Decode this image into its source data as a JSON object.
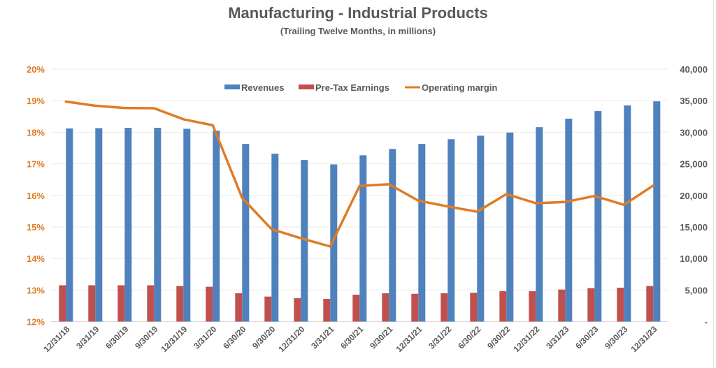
{
  "chart_data": {
    "type": "bar",
    "title": "Manufacturing - Industrial Products",
    "subtitle": "(Trailing Twelve Months, in millions)",
    "xlabel": "",
    "ylabel_left": "",
    "ylabel_right": "",
    "legend_position": "top-center",
    "grid": true,
    "categories": [
      "12/31/18",
      "3/31/19",
      "6/30/19",
      "9/30/19",
      "12/31/19",
      "3/31/20",
      "6/30/20",
      "9/30/20",
      "12/31/20",
      "3/31/21",
      "6/30/21",
      "9/30/21",
      "12/31/21",
      "3/31/22",
      "6/30/22",
      "9/30/22",
      "12/31/22",
      "3/31/23",
      "6/30/23",
      "9/30/23",
      "12/31/23"
    ],
    "series": [
      {
        "name": "Revenues",
        "type": "bar",
        "axis": "right",
        "color": "#4f81bd",
        "values": [
          30600,
          30650,
          30700,
          30700,
          30550,
          30250,
          28150,
          26600,
          25600,
          24900,
          26350,
          27350,
          28150,
          28900,
          29450,
          29950,
          30800,
          32150,
          33350,
          34250,
          34900
        ]
      },
      {
        "name": "Pre-Tax Earnings",
        "type": "bar",
        "axis": "right",
        "color": "#c0504d",
        "values": [
          5750,
          5750,
          5750,
          5750,
          5630,
          5520,
          4480,
          3960,
          3700,
          3590,
          4260,
          4480,
          4400,
          4480,
          4560,
          4810,
          4810,
          5070,
          5300,
          5370,
          5630
        ]
      },
      {
        "name": "Operating margin",
        "type": "line",
        "axis": "left",
        "color": "#e07b24",
        "values": [
          18.97,
          18.84,
          18.77,
          18.76,
          18.41,
          18.22,
          15.92,
          14.93,
          14.64,
          14.38,
          16.3,
          16.35,
          15.83,
          15.65,
          15.48,
          16.04,
          15.75,
          15.79,
          15.98,
          15.7,
          16.31
        ]
      }
    ],
    "y_left": {
      "range": [
        12,
        20
      ],
      "ticks": [
        12,
        13,
        14,
        15,
        16,
        17,
        18,
        19,
        20
      ],
      "tick_labels": [
        "12%",
        "13%",
        "14%",
        "15%",
        "16%",
        "17%",
        "18%",
        "19%",
        "20%"
      ],
      "color": "#e07b24"
    },
    "y_right": {
      "range": [
        0,
        40000
      ],
      "ticks": [
        0,
        5000,
        10000,
        15000,
        20000,
        25000,
        30000,
        35000,
        40000
      ],
      "tick_labels": [
        "-",
        "5,000",
        "10,000",
        "15,000",
        "20,000",
        "25,000",
        "30,000",
        "35,000",
        "40,000"
      ],
      "color": "#595959"
    },
    "legend": [
      {
        "label": "Revenues",
        "kind": "bar",
        "color": "#4f81bd"
      },
      {
        "label": "Pre-Tax Earnings",
        "kind": "bar",
        "color": "#c0504d"
      },
      {
        "label": "Operating margin",
        "kind": "line",
        "color": "#e07b24"
      }
    ]
  }
}
